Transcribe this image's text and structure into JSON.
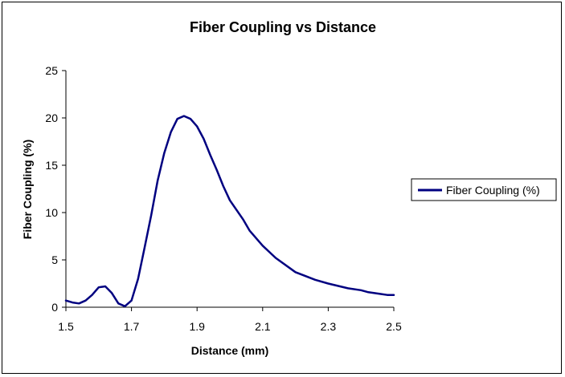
{
  "chart_data": {
    "type": "line",
    "title": "Fiber Coupling vs Distance",
    "xlabel": "Distance (mm)",
    "ylabel": "Fiber Coupling (%)",
    "xlim": [
      1.5,
      2.5
    ],
    "ylim": [
      0,
      25
    ],
    "xticks": [
      1.5,
      1.7,
      1.9,
      2.1,
      2.3,
      2.5
    ],
    "yticks": [
      0,
      5,
      10,
      15,
      20,
      25
    ],
    "xtick_labels": [
      "1.5",
      "1.7",
      "1.9",
      "2.1",
      "2.3",
      "2.5"
    ],
    "ytick_labels": [
      "0",
      "5",
      "10",
      "15",
      "20",
      "25"
    ],
    "grid": false,
    "legend_position": "right",
    "series": [
      {
        "name": "Fiber Coupling (%)",
        "color": "#000080",
        "x": [
          1.5,
          1.52,
          1.54,
          1.56,
          1.58,
          1.6,
          1.62,
          1.64,
          1.66,
          1.68,
          1.7,
          1.72,
          1.74,
          1.76,
          1.78,
          1.8,
          1.82,
          1.84,
          1.86,
          1.88,
          1.9,
          1.92,
          1.94,
          1.96,
          1.98,
          2.0,
          2.04,
          2.06,
          2.1,
          2.14,
          2.2,
          2.26,
          2.3,
          2.36,
          2.4,
          2.42,
          2.46,
          2.48,
          2.5
        ],
        "y": [
          0.7,
          0.5,
          0.4,
          0.7,
          1.3,
          2.1,
          2.2,
          1.5,
          0.4,
          0.1,
          0.7,
          3.0,
          6.3,
          9.7,
          13.4,
          16.3,
          18.5,
          19.9,
          20.2,
          19.9,
          19.1,
          17.8,
          16.1,
          14.5,
          12.8,
          11.3,
          9.3,
          8.1,
          6.5,
          5.2,
          3.7,
          2.9,
          2.5,
          2.0,
          1.8,
          1.6,
          1.4,
          1.3,
          1.3
        ]
      }
    ]
  }
}
